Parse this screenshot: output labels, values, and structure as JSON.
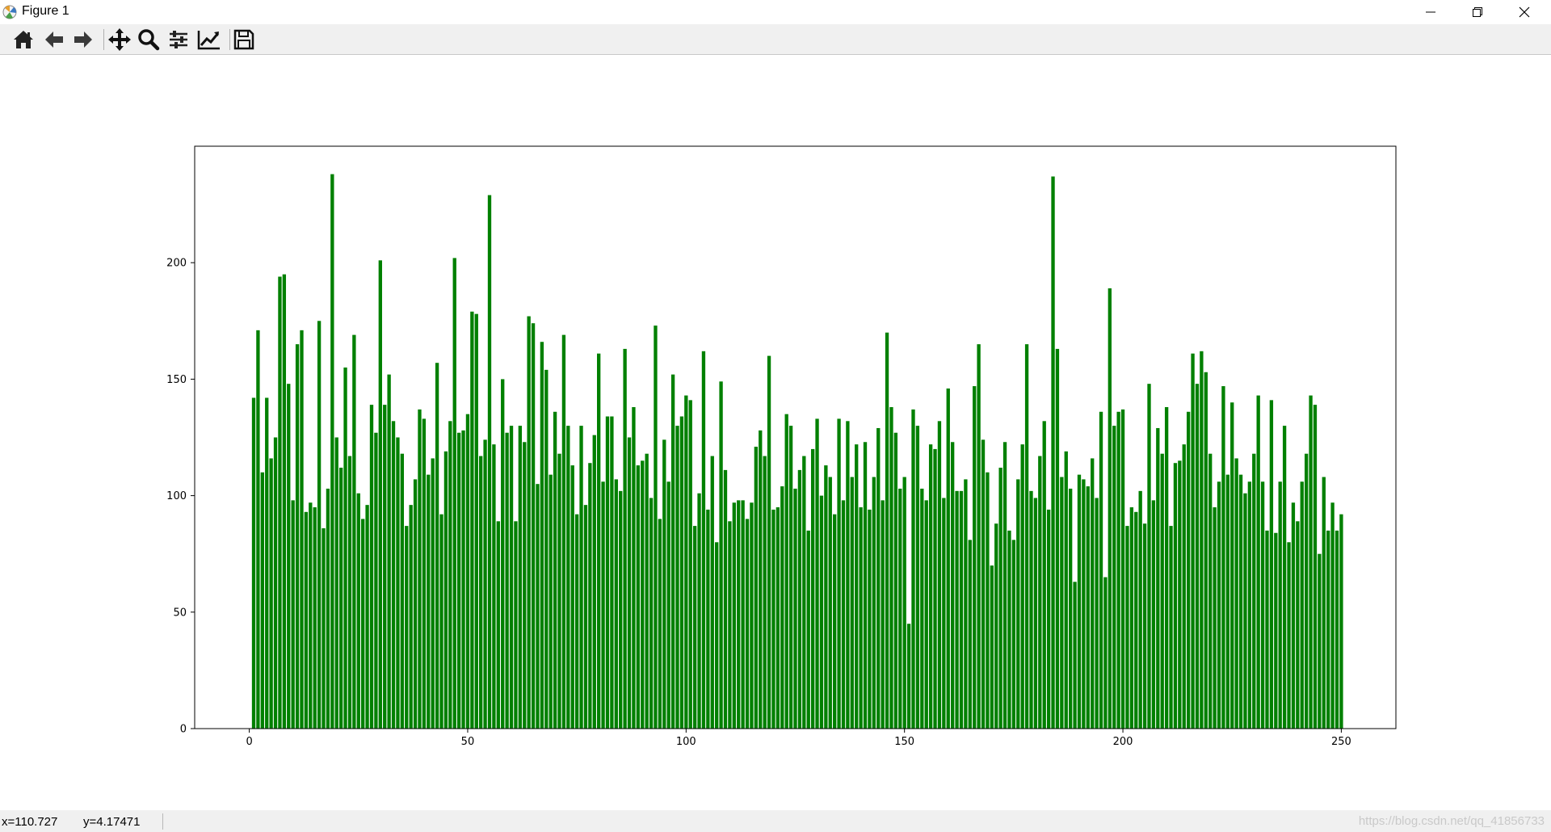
{
  "window": {
    "title": "Figure 1",
    "minimize_icon": "minimize-icon",
    "restore_icon": "restore-icon",
    "close_icon": "close-icon"
  },
  "toolbar": {
    "tools": [
      {
        "name": "home",
        "icon": "home-icon"
      },
      {
        "name": "back",
        "icon": "arrow-left-icon"
      },
      {
        "name": "forward",
        "icon": "arrow-right-icon"
      },
      {
        "name": "pan",
        "icon": "move-icon"
      },
      {
        "name": "zoom",
        "icon": "magnifier-icon"
      },
      {
        "name": "subplots",
        "icon": "sliders-icon"
      },
      {
        "name": "edit-axes",
        "icon": "line-chart-icon"
      },
      {
        "name": "save",
        "icon": "floppy-disk-icon"
      }
    ]
  },
  "status": {
    "x": "x=110.727",
    "y": "y=4.17471",
    "watermark": "https://blog.csdn.net/qq_41856733"
  },
  "chart_data": {
    "type": "bar",
    "bar_color": "#008000",
    "x_start": 1,
    "values": [
      142,
      171,
      110,
      142,
      116,
      125,
      194,
      195,
      148,
      98,
      165,
      171,
      93,
      97,
      95,
      175,
      86,
      103,
      238,
      125,
      112,
      155,
      117,
      169,
      101,
      90,
      96,
      139,
      127,
      201,
      139,
      152,
      132,
      125,
      118,
      87,
      96,
      107,
      137,
      133,
      109,
      116,
      157,
      92,
      119,
      132,
      202,
      127,
      128,
      135,
      179,
      178,
      117,
      124,
      229,
      122,
      89,
      150,
      127,
      130,
      89,
      130,
      123,
      177,
      174,
      105,
      166,
      154,
      109,
      136,
      118,
      169,
      130,
      113,
      92,
      130,
      96,
      114,
      126,
      161,
      106,
      134,
      134,
      107,
      102,
      163,
      125,
      138,
      113,
      115,
      118,
      99,
      173,
      90,
      124,
      106,
      152,
      130,
      134,
      143,
      141,
      87,
      101,
      162,
      94,
      117,
      80,
      149,
      111,
      89,
      97,
      98,
      98,
      90,
      97,
      121,
      128,
      117,
      160,
      94,
      95,
      104,
      135,
      130,
      103,
      111,
      117,
      85,
      120,
      133,
      100,
      113,
      108,
      92,
      133,
      98,
      132,
      108,
      122,
      95,
      123,
      94,
      108,
      129,
      98,
      170,
      138,
      127,
      103,
      108,
      45,
      137,
      130,
      103,
      98,
      122,
      120,
      132,
      99,
      146,
      123,
      102,
      102,
      107,
      81,
      147,
      165,
      124,
      110,
      70,
      88,
      112,
      123,
      85,
      81,
      107,
      122,
      165,
      102,
      99,
      117,
      132,
      94,
      237,
      163,
      108,
      119,
      103,
      63,
      109,
      107,
      104,
      116,
      99,
      136,
      65,
      189,
      130,
      136,
      137,
      87,
      95,
      93,
      102,
      88,
      148,
      98,
      129,
      118,
      138,
      87,
      114,
      115,
      122,
      136,
      161,
      148,
      162,
      153,
      118,
      95,
      106,
      147,
      109,
      140,
      116,
      109,
      101,
      106,
      118,
      143,
      106,
      85,
      141,
      84,
      106,
      130,
      80,
      97,
      89,
      106,
      118,
      143,
      139,
      75,
      108,
      85,
      97,
      85,
      92
    ],
    "xlim": [
      -12.5,
      262.5
    ],
    "ylim": [
      0,
      250
    ],
    "xticks": [
      0,
      50,
      100,
      150,
      200,
      250
    ],
    "yticks": [
      0,
      50,
      100,
      150,
      200
    ],
    "title": "",
    "xlabel": "",
    "ylabel": "",
    "grid": false
  }
}
